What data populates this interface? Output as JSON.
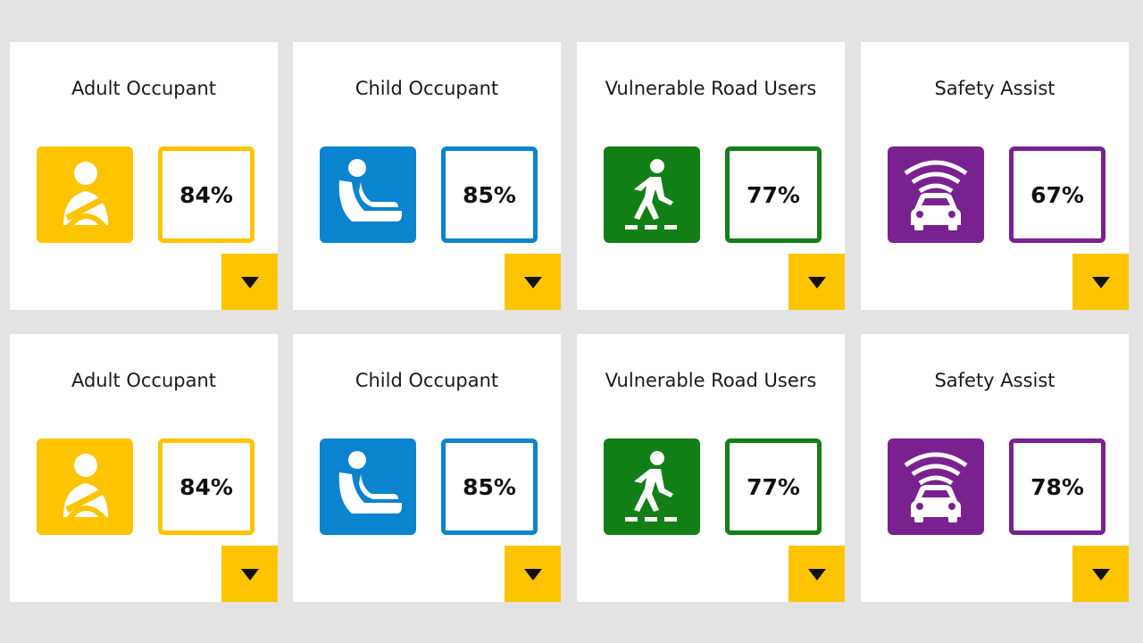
{
  "colors": {
    "adult": "#fec400",
    "child": "#0a84cf",
    "vru": "#137f17",
    "safety": "#7a2190",
    "toggle": "#fec400"
  },
  "rows": [
    {
      "cards": [
        {
          "title": "Adult Occupant",
          "score": "84%",
          "icon": "seatbelt-person-icon"
        },
        {
          "title": "Child Occupant",
          "score": "85%",
          "icon": "child-seat-icon"
        },
        {
          "title": "Vulnerable Road Users",
          "score": "77%",
          "icon": "pedestrian-crossing-icon"
        },
        {
          "title": "Safety Assist",
          "score": "67%",
          "icon": "car-sensor-icon"
        }
      ]
    },
    {
      "cards": [
        {
          "title": "Adult Occupant",
          "score": "84%",
          "icon": "seatbelt-person-icon"
        },
        {
          "title": "Child Occupant",
          "score": "85%",
          "icon": "child-seat-icon"
        },
        {
          "title": "Vulnerable Road Users",
          "score": "77%",
          "icon": "pedestrian-crossing-icon"
        },
        {
          "title": "Safety Assist",
          "score": "78%",
          "icon": "car-sensor-icon"
        }
      ]
    }
  ]
}
